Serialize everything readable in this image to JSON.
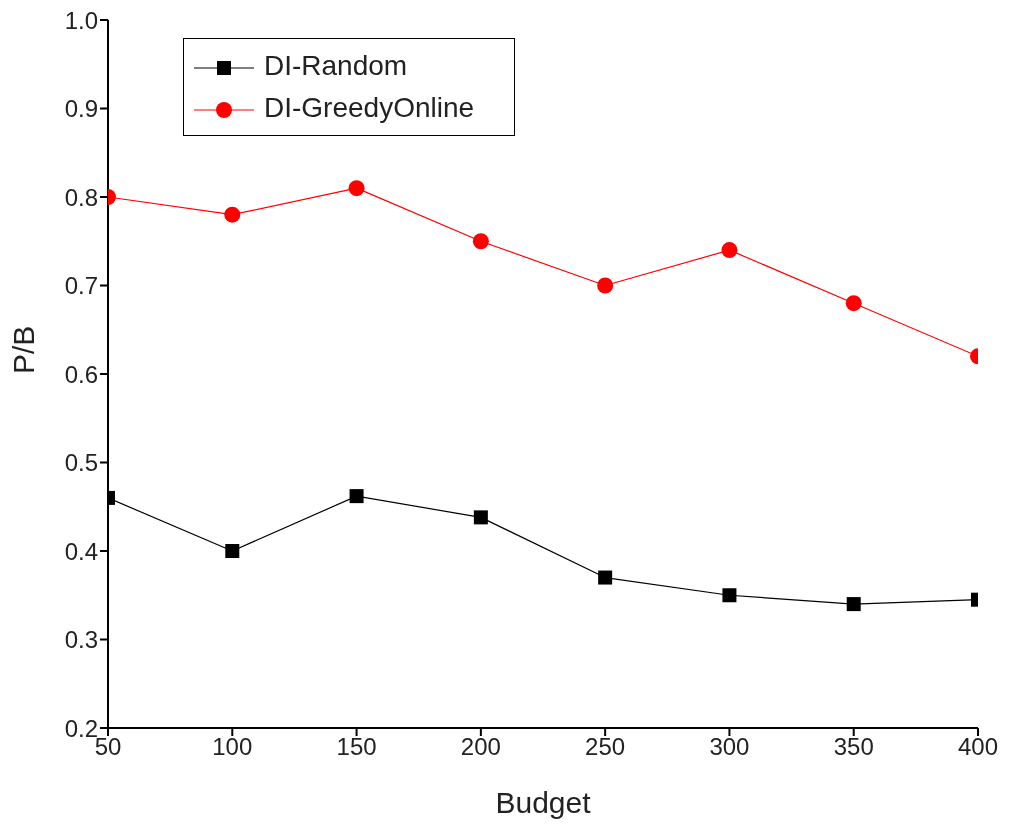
{
  "chart_data": {
    "type": "line",
    "xlabel": "Budget",
    "ylabel": "P/B",
    "x": [
      50,
      100,
      150,
      200,
      250,
      300,
      350,
      400
    ],
    "series": [
      {
        "name": "DI-Random",
        "color": "#000000",
        "marker": "square",
        "values": [
          0.46,
          0.4,
          0.462,
          0.438,
          0.37,
          0.35,
          0.34,
          0.345
        ]
      },
      {
        "name": "DI-GreedyOnline",
        "color": "#ff0000",
        "marker": "circle",
        "values": [
          0.8,
          0.78,
          0.81,
          0.75,
          0.7,
          0.74,
          0.68,
          0.62
        ]
      }
    ],
    "xlim": [
      50,
      400
    ],
    "xticks": [
      50,
      100,
      150,
      200,
      250,
      300,
      350,
      400
    ],
    "ylim": [
      0.2,
      1.0
    ],
    "yticks": [
      0.2,
      0.3,
      0.4,
      0.5,
      0.6,
      0.7,
      0.8,
      0.9,
      {
        "value": 1,
        "label": "1.0"
      }
    ],
    "grid": false,
    "legend": "top left",
    "line_style": "solid"
  }
}
